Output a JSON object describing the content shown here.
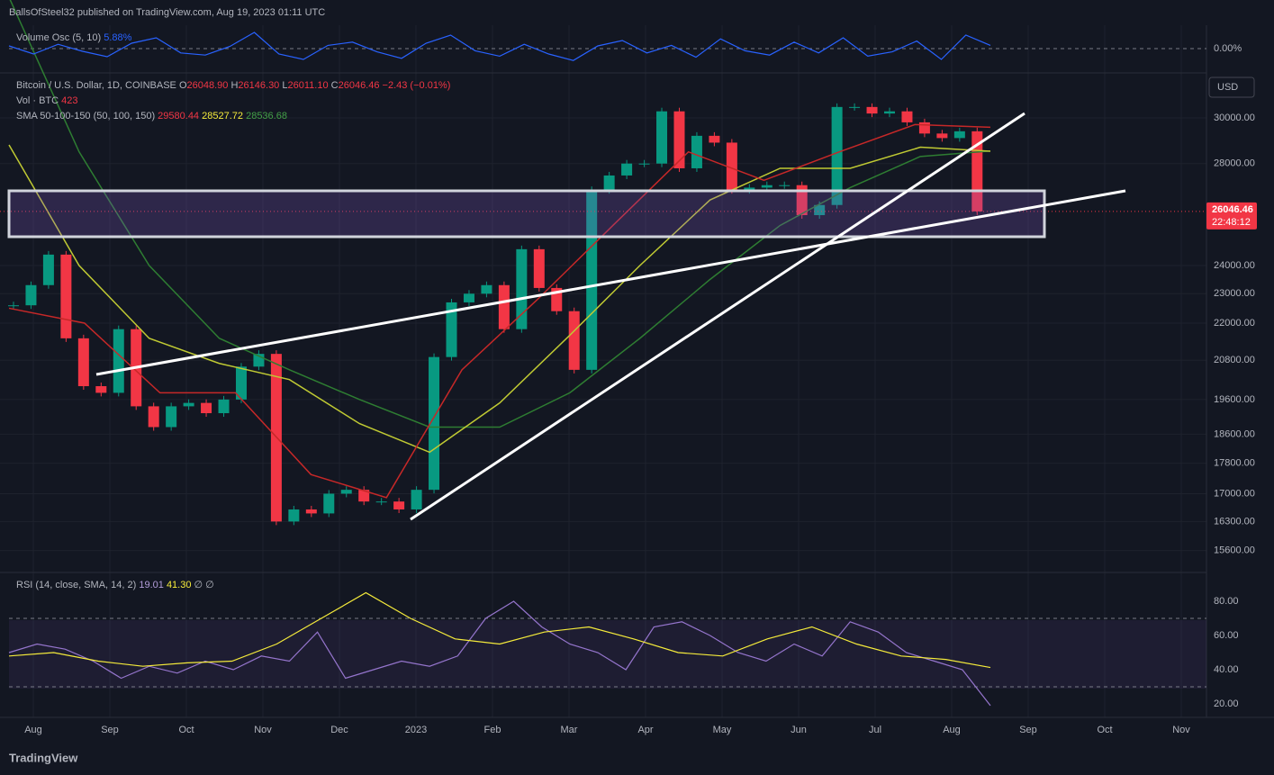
{
  "header": {
    "publisher": "BallsOfSteel32 published on TradingView.com, Aug 19, 2023 01:11 UTC"
  },
  "volume_osc": {
    "label": "Volume Osc (5, 10)",
    "value": "5.88%",
    "ticks": [
      {
        "value": 0,
        "label": "0.00%"
      }
    ],
    "values": [
      5,
      -10,
      8,
      -5,
      -15,
      10,
      20,
      -8,
      -12,
      4,
      30,
      -10,
      -20,
      6,
      12,
      -6,
      -18,
      10,
      25,
      -4,
      -14,
      8,
      -10,
      -22,
      5,
      15,
      -8,
      6,
      -16,
      18,
      -4,
      -12,
      12,
      -8,
      20,
      -14,
      -6,
      14,
      -20,
      25,
      5.88
    ]
  },
  "main": {
    "symbol": "Bitcoin / U.S. Dollar, 1D, COINBASE",
    "o_label": "O",
    "o": "26048.90",
    "h_label": "H",
    "h": "26146.30",
    "l_label": "L",
    "l": "26011.10",
    "c_label": "C",
    "c": "26046.46",
    "change": "−2.43 (−0.01%)",
    "vol_label": "Vol · BTC",
    "vol": "423",
    "sma_label": "SMA 50-100-150 (50, 100, 150)",
    "sma50_value": "29580.44",
    "sma100_value": "28527.72",
    "sma150_value": "28536.68",
    "currency": "USD",
    "last_price": "26046.46",
    "countdown": "22:48:12",
    "price_ticks": [
      {
        "value": 30000,
        "label": "30000.00"
      },
      {
        "value": 28000,
        "label": "28000.00"
      },
      {
        "value": 24000,
        "label": "24000.00"
      },
      {
        "value": 23000,
        "label": "23000.00"
      },
      {
        "value": 22000,
        "label": "22000.00"
      },
      {
        "value": 20800,
        "label": "20800.00"
      },
      {
        "value": 19600,
        "label": "19600.00"
      },
      {
        "value": 18600,
        "label": "18600.00"
      },
      {
        "value": 17800,
        "label": "17800.00"
      },
      {
        "value": 17000,
        "label": "17000.00"
      },
      {
        "value": 16300,
        "label": "16300.00"
      },
      {
        "value": 15600,
        "label": "15600.00"
      }
    ],
    "closes": [
      22600,
      23300,
      24400,
      21500,
      20000,
      19800,
      21800,
      19400,
      18800,
      19400,
      19500,
      19200,
      19600,
      20600,
      21000,
      16300,
      16600,
      16500,
      17000,
      17100,
      16800,
      16800,
      16600,
      17100,
      20900,
      22700,
      23000,
      23300,
      21800,
      24600,
      23200,
      22400,
      20500,
      26900,
      27500,
      28000,
      28000,
      30300,
      27800,
      29200,
      28900,
      26900,
      27000,
      27100,
      27100,
      25900,
      26300,
      30500,
      30500,
      30200,
      30300,
      29800,
      29300,
      29100,
      29400,
      26046.46
    ],
    "sma50": [
      22500,
      22000,
      19800,
      19800,
      17500,
      16900,
      20500,
      22800,
      25500,
      28500,
      27300,
      28500,
      29700,
      29580.44
    ],
    "sma100": [
      28800,
      24000,
      21500,
      20700,
      20200,
      18900,
      18100,
      19500,
      21600,
      24000,
      26500,
      27800,
      27800,
      28700,
      28527.72
    ],
    "sma150": [
      36000,
      28500,
      24000,
      21500,
      20500,
      19600,
      18800,
      18800,
      19800,
      21500,
      23500,
      25500,
      27000,
      28300,
      28536.68
    ]
  },
  "rsi": {
    "label": "RSI (14, close, SMA, 14, 2)",
    "rsi_value": "19.01",
    "sma_value": "41.30",
    "extra": "∅ ∅",
    "ticks": [
      {
        "value": 80,
        "label": "80.00"
      },
      {
        "value": 60,
        "label": "60.00"
      },
      {
        "value": 40,
        "label": "40.00"
      },
      {
        "value": 20,
        "label": "20.00"
      }
    ],
    "values": [
      50,
      55,
      52,
      45,
      35,
      42,
      38,
      45,
      40,
      48,
      45,
      62,
      35,
      40,
      45,
      42,
      48,
      70,
      80,
      65,
      55,
      50,
      40,
      65,
      68,
      60,
      50,
      45,
      55,
      48,
      68,
      62,
      50,
      45,
      40,
      19.01
    ],
    "sma": [
      48,
      50,
      45,
      42,
      44,
      45,
      55,
      70,
      85,
      70,
      58,
      55,
      62,
      65,
      58,
      50,
      48,
      58,
      65,
      55,
      48,
      46,
      41.3
    ]
  },
  "time_axis": [
    "Aug",
    "Sep",
    "Oct",
    "Nov",
    "Dec",
    "2023",
    "Feb",
    "Mar",
    "Apr",
    "May",
    "Jun",
    "Jul",
    "Aug",
    "Sep",
    "Oct",
    "Nov"
  ],
  "footer": {
    "brand": "TradingView"
  }
}
